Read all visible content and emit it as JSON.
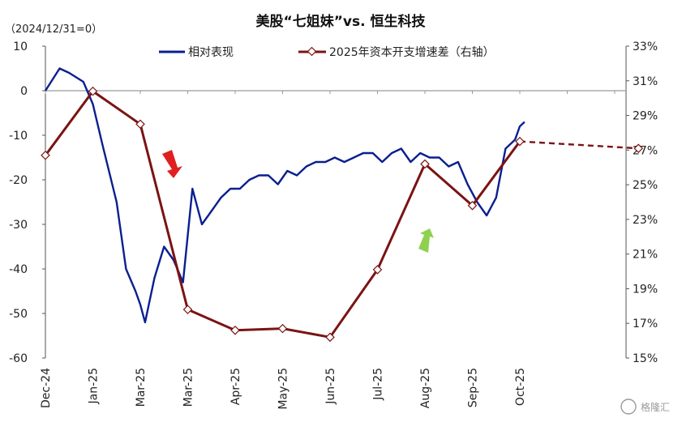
{
  "chart_data": {
    "type": "line",
    "title": "美股“七姐妹”vs. 恒生科技",
    "subtitle": "（2024/12/31=0）",
    "x_ticks": [
      "Dec-24",
      "Jan-25",
      "Mar-25",
      "Mar-25",
      "Apr-25",
      "May-25",
      "Jun-25",
      "Jul-25",
      "Aug-25",
      "Sep-25",
      "Oct-25"
    ],
    "y_left": {
      "ylim": [
        -60,
        10
      ],
      "ticks": [
        "10",
        "0",
        "-10",
        "-20",
        "-30",
        "-40",
        "-50",
        "-60"
      ]
    },
    "y_right": {
      "ylim": [
        15,
        33
      ],
      "ticks": [
        "33%",
        "31%",
        "29%",
        "27%",
        "25%",
        "23%",
        "21%",
        "19%",
        "17%",
        "15%"
      ]
    },
    "zero_line": 0,
    "legend_position": "top",
    "series": [
      {
        "name": "相对表现",
        "axis": "left",
        "color": "#0a1f8f",
        "x": [
          0,
          0.3,
          0.5,
          0.8,
          1,
          1.2,
          1.5,
          1.7,
          1.9,
          2.0,
          2.1,
          2.3,
          2.5,
          2.7,
          2.9,
          3.1,
          3.3,
          3.5,
          3.7,
          3.9,
          4.1,
          4.3,
          4.5,
          4.7,
          4.9,
          5.1,
          5.3,
          5.5,
          5.7,
          5.9,
          6.1,
          6.3,
          6.5,
          6.7,
          6.9,
          7.1,
          7.3,
          7.5,
          7.7,
          7.9,
          8.1,
          8.3,
          8.5,
          8.7,
          8.9,
          9.1,
          9.3,
          9.5,
          9.7,
          9.9,
          10.0,
          10.1
        ],
        "values": [
          0,
          5,
          4,
          2,
          -3,
          -12,
          -25,
          -40,
          -45,
          -48,
          -52,
          -42,
          -35,
          -38,
          -43,
          -22,
          -30,
          -27,
          -24,
          -22,
          -22,
          -20,
          -19,
          -19,
          -21,
          -18,
          -19,
          -17,
          -16,
          -16,
          -15,
          -16,
          -15,
          -14,
          -14,
          -16,
          -14,
          -13,
          -16,
          -14,
          -15,
          -15,
          -17,
          -16,
          -21,
          -25,
          -28,
          -24,
          -13,
          -11,
          -8,
          -7
        ]
      },
      {
        "name": "2025年资本开支增速差（右轴）",
        "axis": "right",
        "color": "#7b1313",
        "x": [
          0,
          1,
          2,
          3,
          4,
          5,
          6,
          7,
          8,
          9,
          10,
          12.5
        ],
        "values": [
          26.7,
          30.4,
          28.5,
          17.8,
          16.6,
          16.7,
          16.2,
          20.1,
          26.2,
          23.8,
          27.5,
          27.1
        ],
        "dashed_from_index": 10
      }
    ],
    "annotations": [
      {
        "type": "arrow",
        "direction": "down",
        "color": "#e02020"
      },
      {
        "type": "arrow",
        "direction": "up",
        "color": "#8fd14f"
      }
    ]
  },
  "watermark": "格隆汇"
}
